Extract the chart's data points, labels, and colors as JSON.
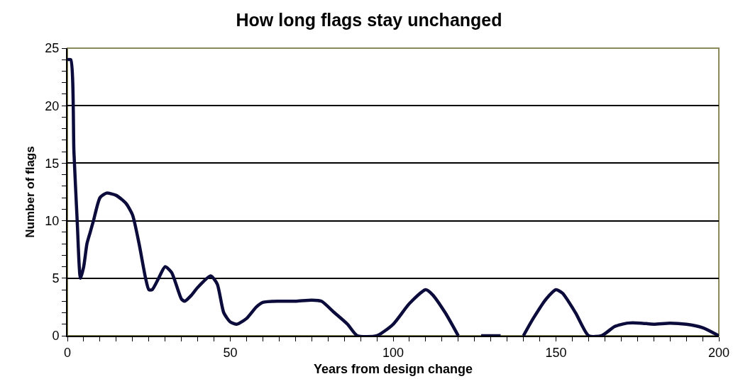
{
  "chart_data": {
    "type": "line",
    "title": "How long flags stay unchanged",
    "xlabel": "Years from design change",
    "ylabel": "Number of flags",
    "x": [
      0,
      1,
      2,
      3,
      4,
      5,
      6,
      7,
      8,
      10,
      12,
      15,
      18,
      20,
      22,
      24,
      25,
      26,
      28,
      30,
      32,
      35,
      36,
      38,
      40,
      44,
      46,
      48,
      50,
      52,
      55,
      58,
      60,
      65,
      70,
      75,
      78,
      82,
      86,
      89,
      95,
      100,
      105,
      110,
      112,
      116,
      120,
      121,
      127,
      133,
      134,
      140,
      143,
      147,
      150,
      152,
      156,
      160,
      164,
      168,
      172,
      176,
      180,
      185,
      190,
      195,
      200
    ],
    "series": [
      {
        "color": "#0c0c3c",
        "values": [
          24,
          24,
          16,
          10,
          5,
          6,
          8,
          9,
          10,
          12,
          12.4,
          12.2,
          11.5,
          10.5,
          8,
          5,
          4,
          4,
          5,
          6,
          5.5,
          3.2,
          3,
          3.5,
          4.2,
          5.2,
          4.5,
          2,
          1.2,
          1,
          1.5,
          2.5,
          2.9,
          3,
          3,
          3.1,
          3,
          2,
          1,
          0,
          0,
          1,
          2.8,
          4,
          3.6,
          2,
          0,
          null,
          0,
          0,
          null,
          0,
          1.5,
          3.2,
          4,
          3.7,
          2,
          0,
          0,
          0.8,
          1.1,
          1.1,
          1,
          1.1,
          1,
          0.7,
          0
        ]
      }
    ],
    "xlim": [
      0,
      200
    ],
    "ylim": [
      0,
      25
    ],
    "xticks": [
      0,
      {
        "value": 5,
        "label": null
      },
      {
        "value": 10,
        "label": null
      },
      {
        "value": 15,
        "label": null
      },
      {
        "value": 20,
        "label": null
      },
      {
        "value": 25,
        "label": null
      },
      {
        "value": 30,
        "label": null
      },
      {
        "value": 35,
        "label": null
      },
      {
        "value": 40,
        "label": null
      },
      {
        "value": 45,
        "label": null
      },
      50,
      {
        "value": 55,
        "label": null
      },
      {
        "value": 60,
        "label": null
      },
      {
        "value": 65,
        "label": null
      },
      {
        "value": 70,
        "label": null
      },
      {
        "value": 75,
        "label": null
      },
      {
        "value": 80,
        "label": null
      },
      {
        "value": 85,
        "label": null
      },
      {
        "value": 90,
        "label": null
      },
      {
        "value": 95,
        "label": null
      },
      100,
      {
        "value": 105,
        "label": null
      },
      {
        "value": 110,
        "label": null
      },
      {
        "value": 115,
        "label": null
      },
      {
        "value": 120,
        "label": null
      },
      {
        "value": 125,
        "label": null
      },
      {
        "value": 130,
        "label": null
      },
      {
        "value": 135,
        "label": null
      },
      {
        "value": 140,
        "label": null
      },
      {
        "value": 145,
        "label": null
      },
      150,
      {
        "value": 155,
        "label": null
      },
      {
        "value": 160,
        "label": null
      },
      {
        "value": 165,
        "label": null
      },
      {
        "value": 170,
        "label": null
      },
      {
        "value": 175,
        "label": null
      },
      {
        "value": 180,
        "label": null
      },
      {
        "value": 185,
        "label": null
      },
      {
        "value": 190,
        "label": null
      },
      {
        "value": 195,
        "label": null
      },
      200
    ],
    "yticks": [
      0,
      {
        "value": 1,
        "label": null
      },
      {
        "value": 2,
        "label": null
      },
      {
        "value": 3,
        "label": null
      },
      {
        "value": 4,
        "label": null
      },
      5,
      {
        "value": 6,
        "label": null
      },
      {
        "value": 7,
        "label": null
      },
      {
        "value": 8,
        "label": null
      },
      {
        "value": 9,
        "label": null
      },
      10,
      {
        "value": 11,
        "label": null
      },
      {
        "value": 12,
        "label": null
      },
      {
        "value": 13,
        "label": null
      },
      {
        "value": 14,
        "label": null
      },
      15,
      {
        "value": 16,
        "label": null
      },
      {
        "value": 17,
        "label": null
      },
      {
        "value": 18,
        "label": null
      },
      {
        "value": 19,
        "label": null
      },
      20,
      {
        "value": 21,
        "label": null
      },
      {
        "value": 22,
        "label": null
      },
      {
        "value": 23,
        "label": null
      },
      {
        "value": 24,
        "label": null
      },
      25
    ],
    "grid": "y",
    "marker": "none",
    "line_style": "solid"
  }
}
